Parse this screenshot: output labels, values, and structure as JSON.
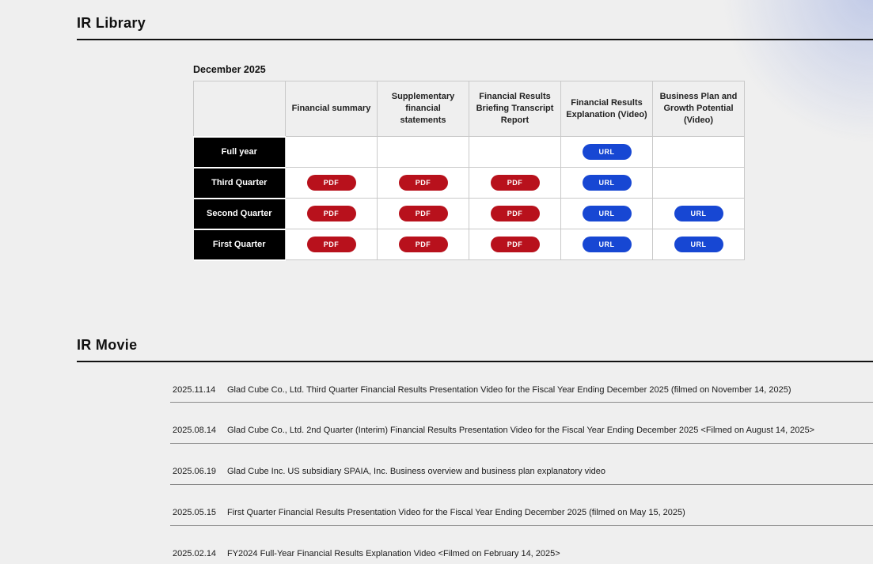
{
  "ir_library": {
    "title": "IR Library",
    "period_label": "December 2025",
    "colors": {
      "pdf_button": "#b8111c",
      "url_button": "#1747d3"
    },
    "table": {
      "columns": [
        "",
        "Financial summary",
        "Supplementary financial statements",
        "Financial Results Briefing Transcript Report",
        "Financial Results Explanation (Video)",
        "Business Plan and Growth Potential (Video)"
      ],
      "rows": [
        {
          "label": "Full year",
          "cells": [
            null,
            null,
            null,
            "URL",
            null
          ]
        },
        {
          "label": "Third Quarter",
          "cells": [
            "PDF",
            "PDF",
            "PDF",
            "URL",
            null
          ]
        },
        {
          "label": "Second Quarter",
          "cells": [
            "PDF",
            "PDF",
            "PDF",
            "URL",
            "URL"
          ]
        },
        {
          "label": "First Quarter",
          "cells": [
            "PDF",
            "PDF",
            "PDF",
            "URL",
            "URL"
          ]
        }
      ]
    }
  },
  "ir_movie": {
    "title": "IR Movie",
    "items": [
      {
        "date": "2025.11.14",
        "title": "Glad Cube Co., Ltd. Third Quarter Financial Results Presentation Video for the Fiscal Year Ending December 2025 (filmed on November 14, 2025)"
      },
      {
        "date": "2025.08.14",
        "title": "Glad Cube Co., Ltd. 2nd Quarter (Interim) Financial Results Presentation Video for the Fiscal Year Ending December 2025 <Filmed on August 14, 2025>"
      },
      {
        "date": "2025.06.19",
        "title": "Glad Cube Inc. US subsidiary SPAIA, Inc. Business overview and business plan explanatory video"
      },
      {
        "date": "2025.05.15",
        "title": "First Quarter Financial Results Presentation Video for the Fiscal Year Ending December 2025 (filmed on May 15, 2025)"
      },
      {
        "date": "2025.02.14",
        "title": "FY2024 Full-Year Financial Results Explanation Video <Filmed on February 14, 2025>"
      }
    ]
  }
}
